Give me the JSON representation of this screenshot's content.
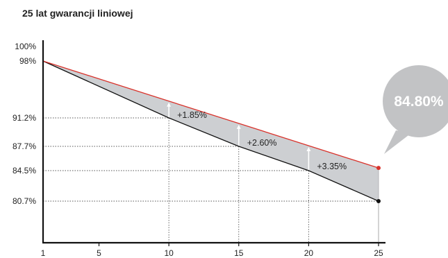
{
  "chart_data": {
    "type": "line",
    "title": "25 lat gwarancji liniowej",
    "xlabel": "",
    "ylabel": "",
    "x_ticks": [
      "1",
      "5",
      "10",
      "15",
      "20",
      "25"
    ],
    "y_ticks": [
      "100%",
      "98%",
      "91.2%",
      "87.7%",
      "84.5%",
      "80.7%"
    ],
    "series": [
      {
        "key": "upper",
        "color": "#d9322b",
        "points": [
          [
            1,
            98
          ],
          [
            25,
            84.8
          ]
        ]
      },
      {
        "key": "lower",
        "color": "#111111",
        "points": [
          [
            1,
            98
          ],
          [
            10,
            91.2
          ],
          [
            15,
            87.7
          ],
          [
            20,
            84.5
          ],
          [
            25,
            80.7
          ]
        ]
      }
    ],
    "annotations": [
      {
        "x": 10,
        "y_from": 91.2,
        "y_to": 93.05,
        "label": "+1.85%"
      },
      {
        "x": 15,
        "y_from": 87.7,
        "y_to": 90.3,
        "label": "+2.60%"
      },
      {
        "x": 20,
        "y_from": 84.5,
        "y_to": 87.85,
        "label": "+3.35%"
      }
    ],
    "callout": {
      "value": 84.8,
      "label": "84.80%"
    },
    "colors": {
      "fill": "#cdcfd2",
      "bubble": "#c2c3c5",
      "grid": "#555555",
      "axis": "#111111"
    },
    "grid": "dotted"
  }
}
